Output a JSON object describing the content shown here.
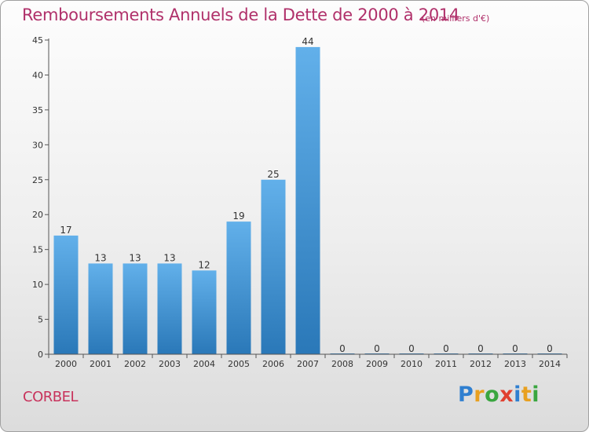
{
  "header": {
    "title": "Remboursements Annuels de la Dette de 2000 à 2014",
    "subtitle": "(en milliers d'€)"
  },
  "footer": {
    "commune": "CORBEL",
    "logo_text": "Proxiti",
    "logo_letter_colors": [
      "#2f7fd0",
      "#e8a020",
      "#3aa640",
      "#e04030",
      "#2f7fd0",
      "#e8a020",
      "#3aa640"
    ]
  },
  "chart_data": {
    "type": "bar",
    "title": "Remboursements Annuels de la Dette de 2000 à 2014",
    "subtitle": "(en milliers d'€)",
    "categories": [
      "2000",
      "2001",
      "2002",
      "2003",
      "2004",
      "2005",
      "2006",
      "2007",
      "2008",
      "2009",
      "2010",
      "2011",
      "2012",
      "2013",
      "2014"
    ],
    "values": [
      17,
      13,
      13,
      13,
      12,
      19,
      25,
      44,
      0,
      0,
      0,
      0,
      0,
      0,
      0
    ],
    "data_labels": [
      "17",
      "13",
      "13",
      "13",
      "12",
      "19",
      "25",
      "44",
      "0",
      "0",
      "0",
      "0",
      "0",
      "0",
      "0"
    ],
    "ylim": [
      0,
      45
    ],
    "yticks": [
      0,
      5,
      10,
      15,
      20,
      25,
      30,
      35,
      40,
      45
    ],
    "grid": false,
    "legend": "none",
    "colors": {
      "bar_top": "#62b0ea",
      "bar_bottom": "#2a78b8",
      "axis": "#555555",
      "text": "#333333"
    }
  }
}
